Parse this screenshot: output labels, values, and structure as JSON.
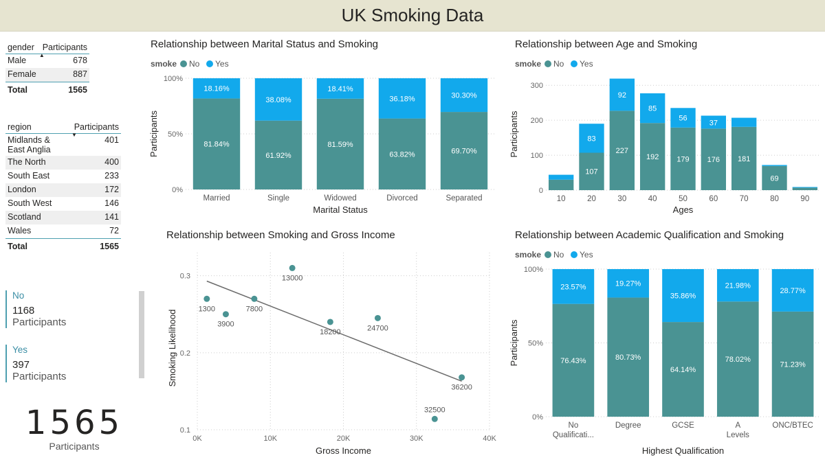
{
  "page": {
    "title": "UK Smoking Data"
  },
  "colors": {
    "no": "#4a9393",
    "yes": "#12a9ec",
    "trend": "#6b6b6b",
    "header_bg": "#e6e4d0"
  },
  "gender_table": {
    "header_dim": "gender",
    "header_measure": "Participants",
    "rows": [
      {
        "label": "Male",
        "value": "678"
      },
      {
        "label": "Female",
        "value": "887"
      }
    ],
    "total_label": "Total",
    "total_value": "1565"
  },
  "region_table": {
    "header_dim": "region",
    "header_measure": "Participants",
    "rows": [
      {
        "label": "Midlands & East Anglia",
        "value": "401"
      },
      {
        "label": "The North",
        "value": "400"
      },
      {
        "label": "South East",
        "value": "233"
      },
      {
        "label": "London",
        "value": "172"
      },
      {
        "label": "South West",
        "value": "146"
      },
      {
        "label": "Scotland",
        "value": "141"
      },
      {
        "label": "Wales",
        "value": "72"
      }
    ],
    "total_label": "Total",
    "total_value": "1565"
  },
  "cards": [
    {
      "title": "No",
      "value": "1168",
      "label": "Participants"
    },
    {
      "title": "Yes",
      "value": "397",
      "label": "Participants"
    }
  ],
  "big_card": {
    "value": "1565",
    "label": "Participants"
  },
  "chart_data": [
    {
      "type": "bar",
      "stacked": true,
      "percent": true,
      "title": "Relationship between Marital Status and Smoking",
      "legend_title": "smoke",
      "legend_position": "top-left",
      "xlabel": "Marital Status",
      "ylabel": "Participants",
      "ylim": [
        0,
        100
      ],
      "y_ticks": [
        0,
        50,
        100
      ],
      "y_tick_labels": [
        "0%",
        "50%",
        "100%"
      ],
      "categories": [
        "Married",
        "Single",
        "Widowed",
        "Divorced",
        "Separated"
      ],
      "series": [
        {
          "name": "No",
          "values": [
            81.84,
            61.92,
            81.59,
            63.82,
            69.7
          ],
          "labels": [
            "81.84%",
            "61.92%",
            "81.59%",
            "63.82%",
            "69.70%"
          ]
        },
        {
          "name": "Yes",
          "values": [
            18.16,
            38.08,
            18.41,
            36.18,
            30.3
          ],
          "labels": [
            "18.16%",
            "38.08%",
            "18.41%",
            "36.18%",
            "30.30%"
          ]
        }
      ]
    },
    {
      "type": "bar",
      "stacked": true,
      "percent": false,
      "title": "Relationship between Age and Smoking",
      "legend_title": "smoke",
      "legend_position": "top-left",
      "xlabel": "Ages",
      "ylabel": "Participants",
      "ylim": [
        0,
        320
      ],
      "y_ticks": [
        0,
        100,
        200,
        300
      ],
      "y_tick_labels": [
        "0",
        "100",
        "200",
        "300"
      ],
      "categories": [
        "10",
        "20",
        "30",
        "40",
        "50",
        "60",
        "70",
        "80",
        "90"
      ],
      "series": [
        {
          "name": "No",
          "values": [
            30,
            107,
            227,
            192,
            179,
            176,
            181,
            69,
            7
          ],
          "labels": [
            "",
            "107",
            "227",
            "192",
            "179",
            "176",
            "181",
            "69",
            ""
          ]
        },
        {
          "name": "Yes",
          "values": [
            14,
            83,
            92,
            85,
            56,
            37,
            26,
            3,
            2
          ],
          "labels": [
            "",
            "83",
            "92",
            "85",
            "56",
            "37",
            "",
            "",
            ""
          ]
        }
      ]
    },
    {
      "type": "scatter",
      "title": "Relationship between Smoking and Gross Income",
      "xlabel": "Gross Income",
      "ylabel": "Smoking Likelihood",
      "xlim": [
        0,
        40000
      ],
      "x_ticks": [
        0,
        10000,
        20000,
        30000,
        40000
      ],
      "x_tick_labels": [
        "0K",
        "10K",
        "20K",
        "30K",
        "40K"
      ],
      "ylim": [
        0.1,
        0.33
      ],
      "y_ticks": [
        0.1,
        0.2,
        0.3
      ],
      "y_tick_labels": [
        "0.1",
        "0.2",
        "0.3"
      ],
      "points": [
        {
          "x": 1300,
          "y": 0.27,
          "label": "1300"
        },
        {
          "x": 3900,
          "y": 0.25,
          "label": "3900"
        },
        {
          "x": 7800,
          "y": 0.27,
          "label": "7800"
        },
        {
          "x": 13000,
          "y": 0.31,
          "label": "13000"
        },
        {
          "x": 18200,
          "y": 0.24,
          "label": "18200"
        },
        {
          "x": 24700,
          "y": 0.245,
          "label": "24700"
        },
        {
          "x": 32500,
          "y": 0.114,
          "label": "32500"
        },
        {
          "x": 36200,
          "y": 0.168,
          "label": "36200"
        }
      ],
      "trendline": {
        "x1": 1300,
        "y1": 0.293,
        "x2": 36200,
        "y2": 0.163
      }
    },
    {
      "type": "bar",
      "stacked": true,
      "percent": true,
      "title": "Relationship between Academic Qualification and Smoking",
      "legend_title": "smoke",
      "legend_position": "top-left",
      "xlabel": "Highest Qualification",
      "ylabel": "Participants",
      "ylim": [
        0,
        100
      ],
      "y_ticks": [
        0,
        50,
        100
      ],
      "y_tick_labels": [
        "0%",
        "50%",
        "100%"
      ],
      "categories": [
        "No Qualificati...",
        "Degree",
        "GCSE",
        "A Levels",
        "ONC/BTEC"
      ],
      "series": [
        {
          "name": "No",
          "values": [
            76.43,
            80.73,
            64.14,
            78.02,
            71.23
          ],
          "labels": [
            "76.43%",
            "80.73%",
            "64.14%",
            "78.02%",
            "71.23%"
          ]
        },
        {
          "name": "Yes",
          "values": [
            23.57,
            19.27,
            35.86,
            21.98,
            28.77
          ],
          "labels": [
            "23.57%",
            "19.27%",
            "35.86%",
            "21.98%",
            "28.77%"
          ]
        }
      ]
    }
  ]
}
